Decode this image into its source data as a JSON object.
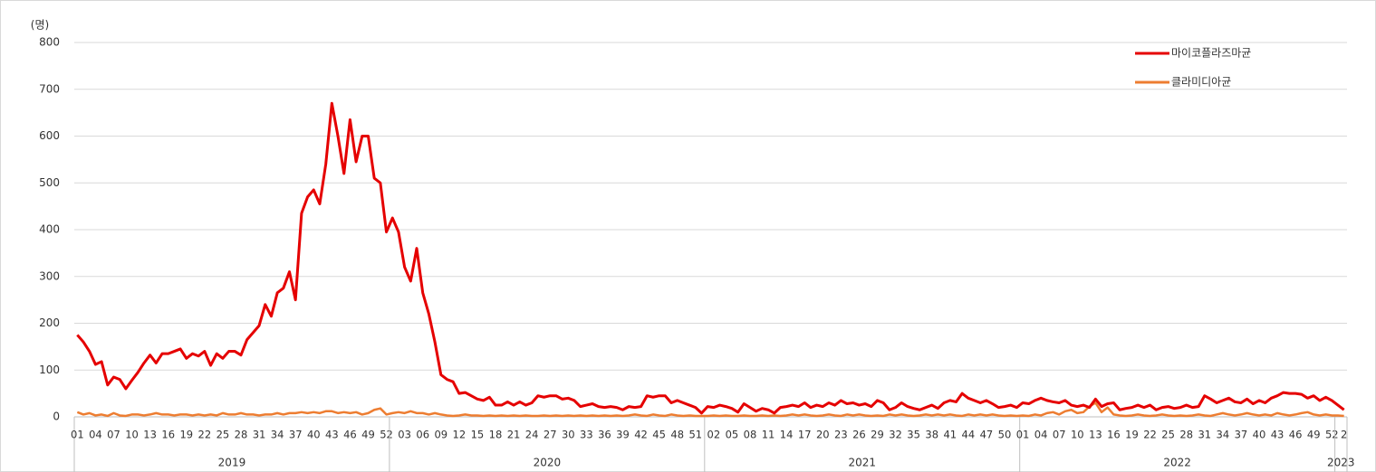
{
  "chart_data": {
    "type": "line",
    "y_axis_label": "(명)",
    "ylim": [
      0,
      800
    ],
    "yticks": [
      0,
      100,
      200,
      300,
      400,
      500,
      600,
      700,
      800
    ],
    "grid": true,
    "legend": "upper right",
    "category_groups": [
      {
        "label": "2019",
        "categories": [
          "01",
          null,
          null,
          "04",
          null,
          null,
          "07",
          null,
          null,
          "10",
          null,
          null,
          "13",
          null,
          null,
          "16",
          null,
          null,
          "19",
          null,
          null,
          "22",
          null,
          null,
          "25",
          null,
          null,
          "28",
          null,
          null,
          "31",
          null,
          null,
          "34",
          null,
          null,
          "37",
          null,
          null,
          "40",
          null,
          null,
          "43",
          null,
          null,
          "46",
          null,
          null,
          "49",
          null,
          null,
          "52"
        ]
      },
      {
        "label": "2020",
        "categories": [
          null,
          null,
          "03",
          null,
          null,
          "06",
          null,
          null,
          "09",
          null,
          null,
          "12",
          null,
          null,
          "15",
          null,
          null,
          "18",
          null,
          null,
          "21",
          null,
          null,
          "24",
          null,
          null,
          "27",
          null,
          null,
          "30",
          null,
          null,
          "33",
          null,
          null,
          "36",
          null,
          null,
          "39",
          null,
          null,
          "42",
          null,
          null,
          "45",
          null,
          null,
          "48",
          null,
          null,
          "51",
          null
        ]
      },
      {
        "label": "2021",
        "categories": [
          null,
          "02",
          null,
          null,
          "05",
          null,
          null,
          "08",
          null,
          null,
          "11",
          null,
          null,
          "14",
          null,
          null,
          "17",
          null,
          null,
          "20",
          null,
          null,
          "23",
          null,
          null,
          "26",
          null,
          null,
          "29",
          null,
          null,
          "32",
          null,
          null,
          "35",
          null,
          null,
          "38",
          null,
          null,
          "41",
          null,
          null,
          "44",
          null,
          null,
          "47",
          null,
          null,
          "50",
          null,
          null
        ]
      },
      {
        "label": "2022",
        "categories": [
          "01",
          null,
          null,
          "04",
          null,
          null,
          "07",
          null,
          null,
          "10",
          null,
          null,
          "13",
          null,
          null,
          "16",
          null,
          null,
          "19",
          null,
          null,
          "22",
          null,
          null,
          "25",
          null,
          null,
          "28",
          null,
          null,
          "31",
          null,
          null,
          "34",
          null,
          null,
          "37",
          null,
          null,
          "40",
          null,
          null,
          "43",
          null,
          null,
          "46",
          null,
          null,
          "49",
          null,
          null,
          "52"
        ]
      },
      {
        "label": "2023",
        "categories": [
          null,
          "2"
        ]
      }
    ],
    "series": [
      {
        "name": "마이코플라즈마균",
        "color": "#e50000",
        "values": [
          175,
          160,
          140,
          112,
          118,
          68,
          85,
          80,
          60,
          78,
          95,
          115,
          132,
          115,
          135,
          135,
          140,
          145,
          125,
          135,
          130,
          140,
          110,
          135,
          125,
          140,
          140,
          132,
          165,
          180,
          195,
          240,
          215,
          265,
          275,
          310,
          250,
          435,
          470,
          485,
          455,
          540,
          670,
          600,
          520,
          635,
          545,
          600,
          600,
          510,
          500,
          395,
          425,
          395,
          320,
          290,
          360,
          265,
          220,
          160,
          90,
          80,
          75,
          50,
          52,
          45,
          38,
          35,
          42,
          25,
          25,
          32,
          25,
          32,
          25,
          30,
          45,
          42,
          45,
          45,
          38,
          40,
          35,
          22,
          25,
          28,
          22,
          20,
          22,
          20,
          15,
          22,
          20,
          22,
          45,
          42,
          45,
          45,
          30,
          35,
          30,
          25,
          20,
          8,
          22,
          20,
          25,
          22,
          18,
          10,
          28,
          20,
          12,
          18,
          15,
          8,
          20,
          22,
          25,
          22,
          30,
          20,
          25,
          22,
          30,
          25,
          35,
          28,
          30,
          25,
          28,
          22,
          35,
          30,
          15,
          20,
          30,
          22,
          18,
          15,
          20,
          25,
          18,
          30,
          35,
          32,
          50,
          40,
          35,
          30,
          35,
          28,
          20,
          22,
          25,
          20,
          30,
          28,
          35,
          40,
          35,
          32,
          30,
          35,
          25,
          22,
          25,
          20,
          38,
          22,
          28,
          30,
          15,
          18,
          20,
          25,
          20,
          25,
          15,
          20,
          22,
          18,
          20,
          25,
          20,
          22,
          45,
          38,
          30,
          35,
          40,
          32,
          30,
          38,
          28,
          35,
          30,
          40,
          45,
          52,
          50,
          50,
          48,
          40,
          45,
          35,
          42,
          35,
          25,
          15
        ]
      },
      {
        "name": "클라미디아균",
        "color": "#ed7d31",
        "values": [
          10,
          5,
          8,
          3,
          5,
          2,
          8,
          3,
          2,
          5,
          5,
          3,
          5,
          8,
          5,
          5,
          3,
          5,
          5,
          3,
          5,
          3,
          5,
          3,
          8,
          5,
          5,
          8,
          5,
          5,
          3,
          5,
          5,
          8,
          5,
          8,
          8,
          10,
          8,
          10,
          8,
          12,
          12,
          8,
          10,
          8,
          10,
          5,
          8,
          15,
          18,
          5,
          8,
          10,
          8,
          12,
          8,
          8,
          5,
          8,
          5,
          3,
          2,
          3,
          5,
          3,
          3,
          2,
          3,
          2,
          3,
          2,
          3,
          2,
          3,
          2,
          2,
          3,
          2,
          3,
          2,
          3,
          2,
          3,
          2,
          3,
          2,
          3,
          2,
          3,
          2,
          3,
          5,
          3,
          2,
          5,
          3,
          2,
          5,
          3,
          2,
          3,
          2,
          2,
          2,
          3,
          2,
          3,
          2,
          2,
          3,
          2,
          2,
          3,
          2,
          3,
          2,
          3,
          5,
          3,
          5,
          3,
          2,
          3,
          5,
          3,
          2,
          5,
          3,
          5,
          3,
          2,
          3,
          2,
          5,
          3,
          5,
          3,
          2,
          3,
          5,
          3,
          5,
          3,
          5,
          3,
          2,
          5,
          3,
          5,
          3,
          5,
          3,
          2,
          3,
          2,
          3,
          2,
          5,
          3,
          8,
          10,
          5,
          12,
          15,
          8,
          10,
          22,
          30,
          10,
          20,
          5,
          3,
          2,
          3,
          5,
          3,
          2,
          3,
          5,
          3,
          2,
          3,
          2,
          3,
          5,
          3,
          2,
          5,
          8,
          5,
          3,
          5,
          8,
          5,
          3,
          5,
          3,
          8,
          5,
          3,
          5,
          8,
          10,
          5,
          3,
          5,
          3,
          3,
          2
        ]
      }
    ]
  }
}
